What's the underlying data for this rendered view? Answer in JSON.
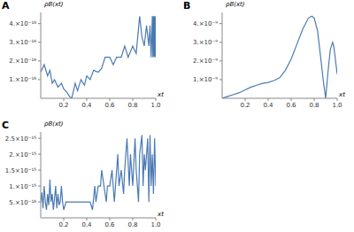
{
  "chart_data": [
    {
      "type": "line",
      "title": "A",
      "x_label": "xt",
      "y_label": "ρB(xt)",
      "color": "#4a7ab5",
      "grid": false,
      "xlim": [
        0,
        1
      ],
      "xticks": [
        0.2,
        0.4,
        0.6,
        0.8,
        {
          "value": 1,
          "label": "1.0"
        }
      ],
      "ylim": [
        0,
        4.6e-16
      ],
      "yticks": [
        {
          "value": 1e-16,
          "label": "1.×10⁻¹⁶"
        },
        {
          "value": 2e-16,
          "label": "2.×10⁻¹⁶"
        },
        {
          "value": 3e-16,
          "label": "3.×10⁻¹⁶"
        },
        {
          "value": 4e-16,
          "label": "4.×10⁻¹⁶"
        }
      ],
      "x": [
        0,
        0.03,
        0.06,
        0.08,
        0.1,
        0.12,
        0.15,
        0.18,
        0.2,
        0.23,
        0.25,
        0.27,
        0.3,
        0.32,
        0.35,
        0.38,
        0.4,
        0.43,
        0.46,
        0.5,
        0.53,
        0.56,
        0.6,
        0.63,
        0.66,
        0.7,
        0.73,
        0.76,
        0.8,
        0.83,
        0.86,
        0.88,
        0.9,
        0.92,
        0.94,
        0.95,
        0.96,
        0.97,
        0.975,
        0.98,
        0.985,
        0.99,
        0.995,
        1.0
      ],
      "values": [
        1.4e-16,
        1.8e-16,
        1.2e-16,
        1.5e-16,
        8e-17,
        1e-16,
        6e-17,
        8e-17,
        5e-17,
        3e-17,
        1e-17,
        0,
        8e-17,
        4e-17,
        1e-16,
        7e-17,
        1.2e-16,
        1e-16,
        1.5e-16,
        1.4e-16,
        1.6e-16,
        2.2e-16,
        2.2e-16,
        1.8e-16,
        2.2e-16,
        2.2e-16,
        2.8e-16,
        2.2e-16,
        2.8e-16,
        2.4e-16,
        4.4e-16,
        3.3e-16,
        2.8e-16,
        3.9e-16,
        2.8e-16,
        3.9e-16,
        2.2e-16,
        4.4e-16,
        2.2e-16,
        4.4e-16,
        2.2e-16,
        4.4e-16,
        2.2e-16,
        4.4e-16
      ]
    },
    {
      "type": "line",
      "title": "B",
      "x_label": "xt",
      "y_label": "ρB(xt)",
      "color": "#4a7ab5",
      "grid": false,
      "xlim": [
        0,
        1
      ],
      "xticks": [
        0.2,
        0.4,
        0.6,
        0.8,
        {
          "value": 1,
          "label": "1.0"
        }
      ],
      "ylim": [
        0,
        4.6e-09
      ],
      "yticks": [
        {
          "value": 1e-09,
          "label": "1.×10⁻⁹"
        },
        {
          "value": 2e-09,
          "label": "2.×10⁻⁹"
        },
        {
          "value": 3e-09,
          "label": "3.×10⁻⁹"
        },
        {
          "value": 4e-09,
          "label": "4.×10⁻⁹"
        }
      ],
      "x": [
        0,
        0.05,
        0.1,
        0.15,
        0.2,
        0.25,
        0.3,
        0.35,
        0.4,
        0.45,
        0.5,
        0.55,
        0.6,
        0.65,
        0.7,
        0.75,
        0.78,
        0.8,
        0.83,
        0.86,
        0.88,
        0.9,
        0.92,
        0.94,
        0.96,
        0.97,
        0.98,
        1.0
      ],
      "values": [
        0,
        1e-10,
        2e-10,
        3e-10,
        4.5e-10,
        6e-10,
        7e-10,
        8e-10,
        8.5e-10,
        9.5e-10,
        1.1e-09,
        1.5e-09,
        2.1e-09,
        2.9e-09,
        3.7e-09,
        4.3e-09,
        4.4e-09,
        4.3e-09,
        3.6e-09,
        2e-09,
        9e-10,
        0,
        1.4e-09,
        2.6e-09,
        3e-09,
        2.8e-09,
        2.3e-09,
        1.3e-09
      ]
    },
    {
      "type": "line",
      "title": "C",
      "x_label": "xt",
      "y_label": "ρB(xt)",
      "color": "#4a7ab5",
      "grid": false,
      "xlim": [
        0,
        1
      ],
      "xticks": [
        0.2,
        0.4,
        0.6,
        0.8,
        {
          "value": 1,
          "label": "1.0"
        }
      ],
      "ylim": [
        0,
        2.7e-15
      ],
      "yticks": [
        {
          "value": 5e-16,
          "label": "5.×10⁻¹⁶"
        },
        {
          "value": 1e-15,
          "label": "1.×10⁻¹⁵"
        },
        {
          "value": 1.5e-15,
          "label": "1.5×10⁻¹⁵"
        },
        {
          "value": 2e-15,
          "label": "2.×10⁻¹⁵"
        },
        {
          "value": 2.5e-15,
          "label": "2.5×10⁻¹⁵"
        }
      ],
      "x": [
        0,
        0.01,
        0.02,
        0.03,
        0.04,
        0.05,
        0.06,
        0.07,
        0.08,
        0.09,
        0.1,
        0.11,
        0.12,
        0.13,
        0.14,
        0.15,
        0.16,
        0.17,
        0.18,
        0.19,
        0.2,
        0.22,
        0.25,
        0.28,
        0.3,
        0.33,
        0.36,
        0.4,
        0.43,
        0.45,
        0.47,
        0.48,
        0.5,
        0.52,
        0.53,
        0.55,
        0.57,
        0.58,
        0.6,
        0.62,
        0.64,
        0.65,
        0.67,
        0.68,
        0.7,
        0.72,
        0.73,
        0.75,
        0.77,
        0.78,
        0.8,
        0.82,
        0.83,
        0.85,
        0.86,
        0.88,
        0.89,
        0.9,
        0.91,
        0.93,
        0.94,
        0.95,
        0.96,
        0.97,
        0.98,
        0.99,
        1.0
      ],
      "values": [
        5e-16,
        8e-16,
        3e-16,
        1e-15,
        5e-16,
        2.5e-16,
        7.5e-16,
        4e-16,
        1.2e-15,
        5e-16,
        7.5e-16,
        2.5e-16,
        6e-16,
        1e-15,
        3e-16,
        7.5e-16,
        4e-16,
        5e-16,
        1e-15,
        5e-16,
        2.5e-16,
        5e-16,
        5e-16,
        5e-16,
        5e-16,
        5e-16,
        5e-16,
        5e-16,
        5e-16,
        2.5e-16,
        1e-15,
        5e-16,
        1e-15,
        1e-15,
        1.5e-15,
        1e-15,
        5e-16,
        1e-15,
        1e-15,
        1.5e-15,
        5e-16,
        1e-15,
        2e-15,
        1e-15,
        1.5e-15,
        7.5e-16,
        1.5e-15,
        2.5e-15,
        1e-15,
        2e-15,
        1e-15,
        2.5e-15,
        1.5e-15,
        5e-16,
        2e-15,
        2.6e-15,
        1e-15,
        2e-15,
        1.5e-15,
        2.5e-15,
        5e-16,
        2.6e-15,
        1e-15,
        2e-15,
        7.5e-16,
        2.5e-15,
        1e-15
      ]
    }
  ]
}
